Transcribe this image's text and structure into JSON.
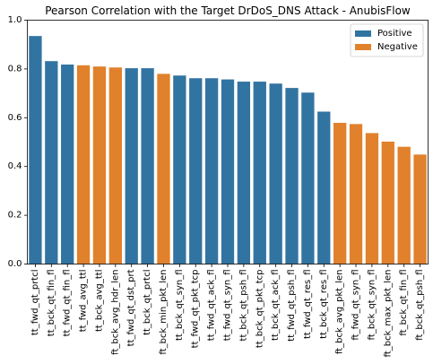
{
  "chart_data": {
    "type": "bar",
    "title": "Pearson Correlation with the Target DrDoS_DNS Attack - AnubisFlow",
    "xlabel": "",
    "ylabel": "",
    "ylim": [
      0,
      1.0
    ],
    "yticks": [
      "0.0",
      "0.2",
      "0.4",
      "0.6",
      "0.8",
      "1.0"
    ],
    "grid": false,
    "legend_position": "top-right",
    "legend": [
      {
        "name": "Positive",
        "color": "#3274a1"
      },
      {
        "name": "Negative",
        "color": "#e1812c"
      }
    ],
    "categories": [
      "tt_fwd_qt_prtcl",
      "tt_bck_qt_fin_fl",
      "tt_fwd_qt_fin_fl",
      "tt_fwd_avg_ttl",
      "tt_bck_avg_ttl",
      "ft_bck_avg_hdr_len",
      "tt_fwd_qt_dst_prt",
      "tt_bck_qt_prtcl",
      "ft_bck_min_pkt_len",
      "tt_bck_qt_syn_fl",
      "tt_fwd_qt_pkt_tcp",
      "tt_fwd_qt_ack_fl",
      "tt_fwd_qt_syn_fl",
      "tt_bck_qt_psh_fl",
      "tt_bck_qt_pkt_tcp",
      "tt_bck_qt_ack_fl",
      "tt_fwd_qt_psh_fl",
      "tt_fwd_qt_res_fl",
      "tt_bck_qt_res_fl",
      "ft_bck_avg_pkt_len",
      "ft_fwd_qt_syn_fl",
      "ft_bck_qt_syn_fl",
      "ft_bck_max_pkt_len",
      "ft_bck_qt_fin_fl",
      "ft_bck_qt_psh_fl"
    ],
    "values": [
      0.935,
      0.832,
      0.818,
      0.815,
      0.81,
      0.806,
      0.803,
      0.803,
      0.78,
      0.773,
      0.762,
      0.762,
      0.757,
      0.748,
      0.748,
      0.74,
      0.722,
      0.703,
      0.625,
      0.579,
      0.574,
      0.537,
      0.502,
      0.481,
      0.449
    ],
    "signs": [
      "Positive",
      "Positive",
      "Positive",
      "Negative",
      "Negative",
      "Negative",
      "Positive",
      "Positive",
      "Negative",
      "Positive",
      "Positive",
      "Positive",
      "Positive",
      "Positive",
      "Positive",
      "Positive",
      "Positive",
      "Positive",
      "Positive",
      "Negative",
      "Negative",
      "Negative",
      "Negative",
      "Negative",
      "Negative"
    ]
  }
}
